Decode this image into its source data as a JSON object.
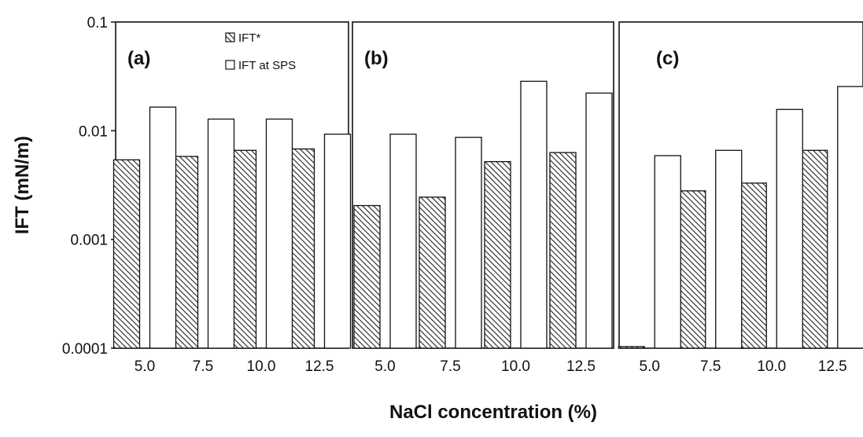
{
  "chart_data": {
    "type": "bar",
    "scale": "log",
    "ylim": [
      0.0001,
      0.1
    ],
    "y_ticks": [
      "0.0001",
      "0.001",
      "0.01",
      "0.1"
    ],
    "categories": [
      "5.0",
      "7.5",
      "10.0",
      "12.5"
    ],
    "xlabel": "NaCl concentration (%)",
    "ylabel": "IFT (mN/m)",
    "legend": {
      "placement": "top-right of panel (a)",
      "entries": [
        "IFT*",
        "IFT at SPS"
      ]
    },
    "grid": false,
    "panels": [
      {
        "label": "(a)",
        "series": [
          {
            "name": "IFT*",
            "values": [
              0.0054,
              0.0058,
              0.0066,
              0.0068
            ]
          },
          {
            "name": "IFT at SPS",
            "values": [
              0.0165,
              0.0128,
              0.0128,
              0.0093
            ]
          }
        ]
      },
      {
        "label": "(b)",
        "series": [
          {
            "name": "IFT*",
            "values": [
              0.00205,
              0.00245,
              0.0052,
              0.0063
            ]
          },
          {
            "name": "IFT at SPS",
            "values": [
              0.0093,
              0.0087,
              0.0285,
              0.0222
            ]
          }
        ]
      },
      {
        "label": "(c)",
        "series": [
          {
            "name": "IFT*",
            "values": [
              0.0001,
              0.0028,
              0.0033,
              0.0066
            ]
          },
          {
            "name": "IFT at SPS",
            "values": [
              0.0059,
              0.0066,
              0.0157,
              0.0255
            ]
          }
        ]
      }
    ]
  }
}
